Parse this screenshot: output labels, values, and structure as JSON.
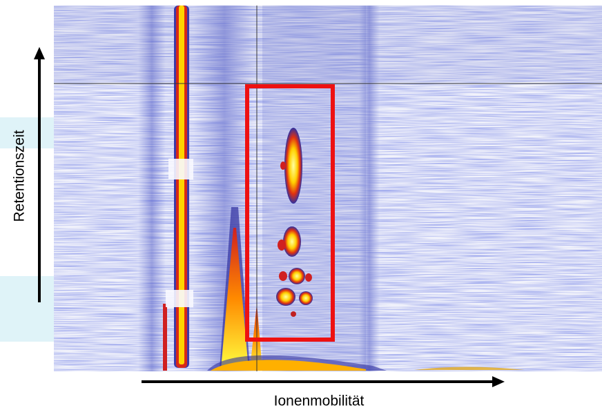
{
  "labels": {
    "y_axis": "Retentionszeit",
    "x_axis": "Ionenmobilität"
  }
}
